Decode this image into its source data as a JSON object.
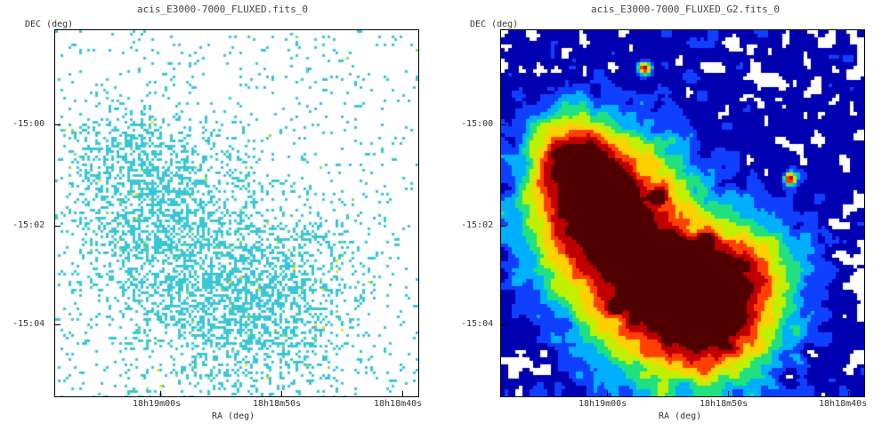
{
  "panels": [
    {
      "title": "acis_E3000-7000_FLUXED.fits_0",
      "ylabel": "DEC (deg)",
      "xlabel": "RA (deg)",
      "yticks": [
        "-15:00",
        "-15:02",
        "-15:04"
      ],
      "xticks": [
        "18h19m00s",
        "18h18m50s",
        "18h18m40s"
      ]
    },
    {
      "title": "acis_E3000-7000_FLUXED_G2.fits_0",
      "ylabel": "DEC (deg)",
      "xlabel": "RA (deg)",
      "yticks": [
        "-15:00",
        "-15:02",
        "-15:04"
      ],
      "xticks": [
        "18h19m00s",
        "18h18m50s",
        "18h18m40s"
      ]
    }
  ],
  "chart_data": [
    {
      "type": "heatmap",
      "title": "acis_E3000-7000_FLUXED.fits_0",
      "xlabel": "RA (deg)",
      "ylabel": "DEC (deg)",
      "x_ticks": [
        "18h19m00s",
        "18h18m50s",
        "18h18m40s"
      ],
      "y_ticks": [
        "-15:00",
        "-15:02",
        "-15:04"
      ],
      "colormap": [
        "#ffffff",
        "#38c6d8",
        "#7fe060",
        "#ffe000"
      ]
    },
    {
      "type": "heatmap",
      "title": "acis_E3000-7000_FLUXED_G2.fits_0",
      "xlabel": "RA (deg)",
      "ylabel": "DEC (deg)",
      "x_ticks": [
        "18h19m00s",
        "18h18m50s",
        "18h18m40s"
      ],
      "y_ticks": [
        "-15:00",
        "-15:02",
        "-15:04"
      ],
      "colormap": [
        "#ffffff",
        "#0000b0",
        "#1040ff",
        "#00b0ff",
        "#20e080",
        "#c0f000",
        "#ffd000",
        "#ff4000",
        "#c00000",
        "#500000"
      ]
    }
  ]
}
